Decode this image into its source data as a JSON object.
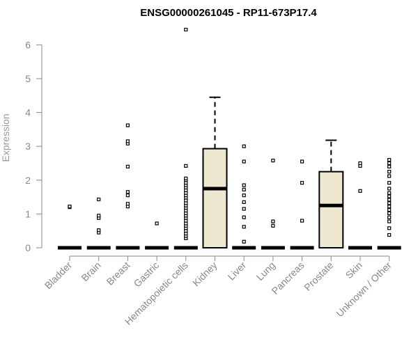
{
  "chart_data": {
    "type": "boxplot",
    "title": "ENSG00000261045 - RP11-673P17.4",
    "xlabel": "",
    "ylabel": "Expression",
    "ylim": [
      0,
      6.5
    ],
    "yticks": [
      0,
      1,
      2,
      3,
      4,
      5,
      6
    ],
    "box_fill": "#efe8d0",
    "categories": [
      "Bladder",
      "Brain",
      "Breast",
      "Gastric",
      "Hematopoietic cells",
      "Kidney",
      "Liver",
      "Lung",
      "Pancreas",
      "Prostate",
      "Skin",
      "Unknown / Other"
    ],
    "boxes": [
      {
        "q1": 0,
        "median": 0,
        "q3": 0,
        "whisker_low": 0,
        "whisker_high": 0,
        "outliers": [
          1.2,
          1.22
        ]
      },
      {
        "q1": 0,
        "median": 0,
        "q3": 0,
        "whisker_low": 0,
        "whisker_high": 0,
        "outliers": [
          0.45,
          0.52,
          0.88,
          0.95,
          1.43
        ]
      },
      {
        "q1": 0,
        "median": 0,
        "q3": 0,
        "whisker_low": 0,
        "whisker_high": 0,
        "outliers": [
          1.22,
          1.3,
          1.55,
          1.65,
          2.4,
          3.08,
          3.15,
          3.62
        ]
      },
      {
        "q1": 0,
        "median": 0,
        "q3": 0,
        "whisker_low": 0,
        "whisker_high": 0,
        "outliers": [
          0.72
        ]
      },
      {
        "q1": 0,
        "median": 0,
        "q3": 0,
        "whisker_low": 0,
        "whisker_high": 0,
        "outliers": [
          0.28,
          0.35,
          0.42,
          0.5,
          0.58,
          0.65,
          0.72,
          0.8,
          0.88,
          0.95,
          1.02,
          1.1,
          1.18,
          1.25,
          1.32,
          1.4,
          1.48,
          1.55,
          1.62,
          1.7,
          1.78,
          1.85,
          1.92,
          2.0,
          2.05,
          2.42,
          6.45
        ]
      },
      {
        "q1": 0,
        "median": 1.75,
        "q3": 2.93,
        "whisker_low": 0,
        "whisker_high": 4.45,
        "outliers": []
      },
      {
        "q1": 0,
        "median": 0,
        "q3": 0,
        "whisker_low": 0,
        "whisker_high": 0,
        "outliers": [
          0.18,
          0.62,
          0.9,
          1.15,
          1.35,
          1.55,
          1.72,
          1.85,
          2.55,
          3.0
        ]
      },
      {
        "q1": 0,
        "median": 0,
        "q3": 0,
        "whisker_low": 0,
        "whisker_high": 0,
        "outliers": [
          0.65,
          0.78,
          2.58
        ]
      },
      {
        "q1": 0,
        "median": 0,
        "q3": 0,
        "whisker_low": 0,
        "whisker_high": 0,
        "outliers": [
          0.8,
          1.92,
          2.55
        ]
      },
      {
        "q1": 0,
        "median": 1.25,
        "q3": 2.25,
        "whisker_low": 0,
        "whisker_high": 3.18,
        "outliers": []
      },
      {
        "q1": 0,
        "median": 0,
        "q3": 0,
        "whisker_low": 0,
        "whisker_high": 0,
        "outliers": [
          1.68,
          2.42,
          2.5
        ]
      },
      {
        "q1": 0,
        "median": 0,
        "q3": 0,
        "whisker_low": 0,
        "whisker_high": 0,
        "outliers": [
          0.38,
          0.58,
          0.78,
          0.9,
          1.02,
          1.12,
          1.22,
          1.32,
          1.42,
          1.52,
          1.62,
          1.75,
          1.92,
          2.12,
          2.25,
          2.4,
          2.5,
          2.6
        ]
      }
    ]
  }
}
